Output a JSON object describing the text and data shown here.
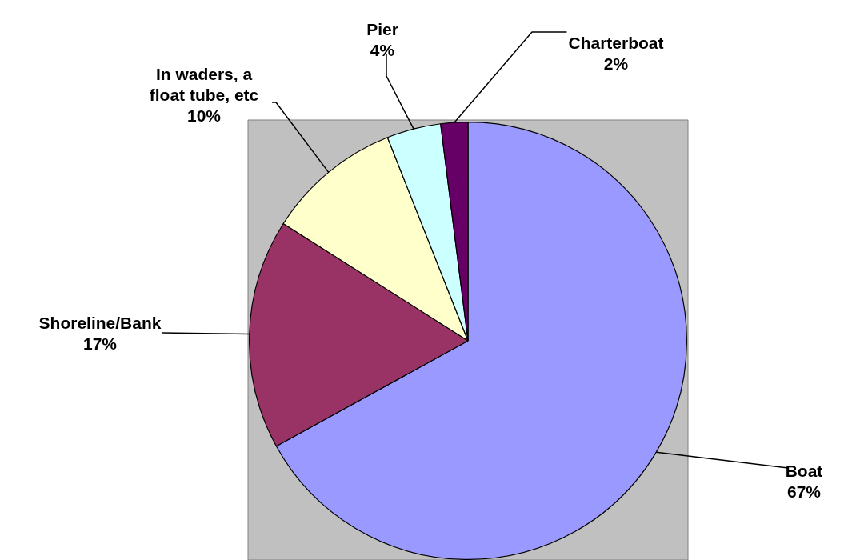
{
  "chart_data": {
    "type": "pie",
    "categories": [
      "Boat",
      "Shoreline/Bank",
      "In waders, a float tube, etc",
      "Pier",
      "Charterboat"
    ],
    "values": [
      67,
      17,
      10,
      4,
      2
    ],
    "colors": [
      "#9999ff",
      "#993366",
      "#ffffcc",
      "#ccffff",
      "#660066"
    ],
    "value_labels": [
      "67%",
      "17%",
      "10%",
      "4%",
      "2%"
    ],
    "legend": false
  }
}
